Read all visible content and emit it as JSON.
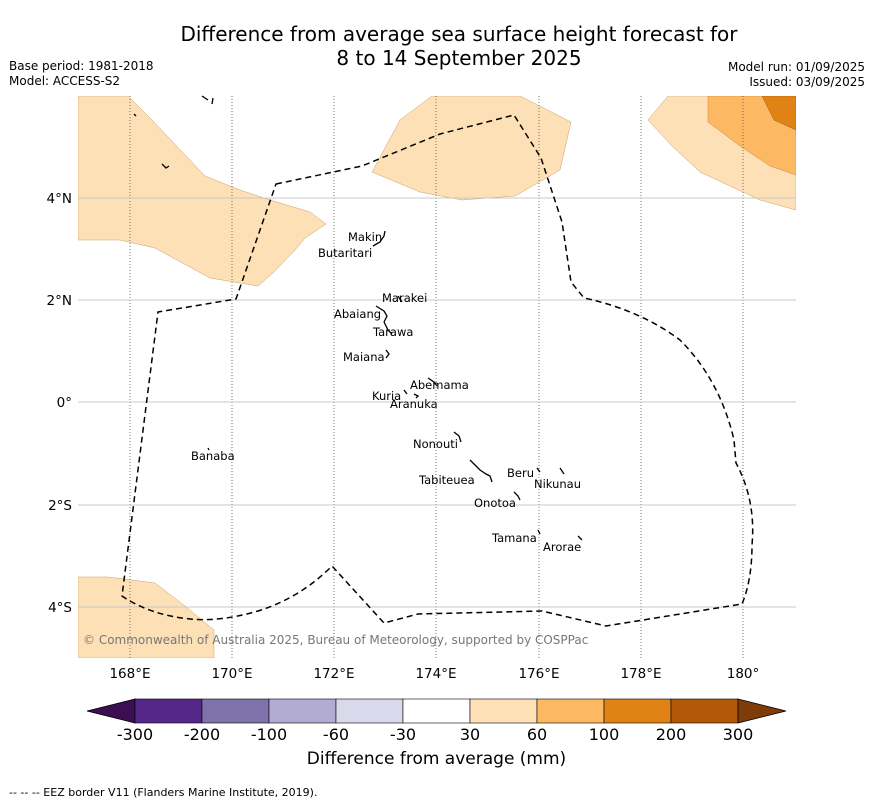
{
  "header": {
    "title_line1": "Difference from average sea surface height forecast for",
    "title_line2": "8 to 14 September 2025",
    "base_period": "Base period: 1981-2018",
    "model": "Model: ACCESS-S2",
    "model_run": "Model run: 01/09/2025",
    "issued": "Issued: 03/09/2025"
  },
  "map": {
    "lon_ticks": [
      "168°E",
      "170°E",
      "172°E",
      "174°E",
      "176°E",
      "178°E",
      "180°"
    ],
    "lat_ticks": [
      "4°N",
      "2°N",
      "0°",
      "2°S",
      "4°S"
    ],
    "copyright": "© Commonwealth of Australia 2025, Bureau of Meteorology, supported by COSPPac",
    "islands": [
      {
        "name": "Makin"
      },
      {
        "name": "Butaritari"
      },
      {
        "name": "Marakei"
      },
      {
        "name": "Abaiang"
      },
      {
        "name": "Tarawa"
      },
      {
        "name": "Maiana"
      },
      {
        "name": "Abemama"
      },
      {
        "name": "Kuria"
      },
      {
        "name": "Aranuka"
      },
      {
        "name": "Banaba"
      },
      {
        "name": "Nonouti"
      },
      {
        "name": "Beru"
      },
      {
        "name": "Tabiteuea"
      },
      {
        "name": "Nikunau"
      },
      {
        "name": "Onotoa"
      },
      {
        "name": "Tamana"
      },
      {
        "name": "Arorae"
      }
    ]
  },
  "colorbar": {
    "ticks": [
      "-300",
      "-200",
      "-100",
      "-60",
      "-30",
      "30",
      "60",
      "100",
      "200",
      "300"
    ],
    "colors": [
      "#3b0f52",
      "#542788",
      "#8073ac",
      "#b2abd2",
      "#d8daeb",
      "#ffffff",
      "#fee0b6",
      "#fdb863",
      "#e08214",
      "#b35806",
      "#7f3b08"
    ],
    "label": "Difference from average (mm)"
  },
  "footer": {
    "eez_note": "--  --  -- EEZ border V11 (Flanders Marine Institute, 2019)."
  }
}
